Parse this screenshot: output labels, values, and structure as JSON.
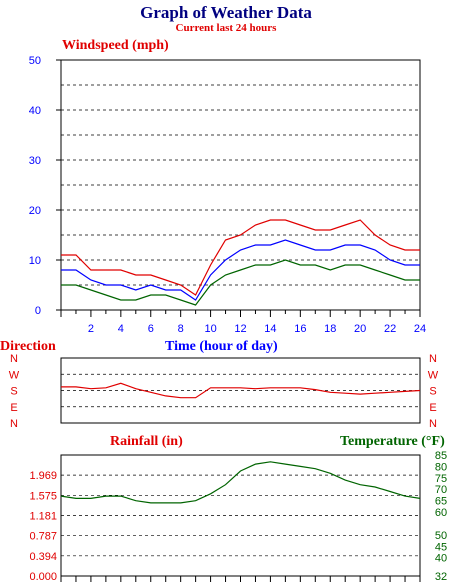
{
  "title": "Graph of Weather Data",
  "subtitle": "Current last 24 hours",
  "colors": {
    "title": "#000080",
    "red": "#e00000",
    "blue": "#0000ff",
    "green": "#006400"
  },
  "chart_data": [
    {
      "type": "line",
      "panel": "windspeed",
      "ylabel": "Windspeed (mph)",
      "xlabel": "Time (hour of day)",
      "xlim": [
        0,
        24
      ],
      "ylim": [
        0,
        50
      ],
      "y_ticks": [
        "0",
        "10",
        "20",
        "30",
        "40",
        "50"
      ],
      "x_ticks": [
        "2",
        "4",
        "6",
        "8",
        "10",
        "12",
        "14",
        "16",
        "18",
        "20",
        "22",
        "24"
      ],
      "grid": true,
      "series": [
        {
          "color": "#e00000",
          "x": [
            0,
            1,
            2,
            3,
            4,
            5,
            6,
            7,
            8,
            9,
            10,
            11,
            12,
            13,
            14,
            15,
            16,
            17,
            18,
            19,
            20,
            21,
            22,
            23,
            24
          ],
          "values": [
            11,
            11,
            8,
            8,
            8,
            7,
            7,
            6,
            5,
            3,
            9,
            14,
            15,
            17,
            18,
            18,
            17,
            16,
            16,
            17,
            18,
            15,
            13,
            12,
            12
          ]
        },
        {
          "color": "#0000ff",
          "x": [
            0,
            1,
            2,
            3,
            4,
            5,
            6,
            7,
            8,
            9,
            10,
            11,
            12,
            13,
            14,
            15,
            16,
            17,
            18,
            19,
            20,
            21,
            22,
            23,
            24
          ],
          "values": [
            8,
            8,
            6,
            5,
            5,
            4,
            5,
            4,
            4,
            2,
            7,
            10,
            12,
            13,
            13,
            14,
            13,
            12,
            12,
            13,
            13,
            12,
            10,
            9,
            9
          ]
        },
        {
          "color": "#006400",
          "x": [
            0,
            1,
            2,
            3,
            4,
            5,
            6,
            7,
            8,
            9,
            10,
            11,
            12,
            13,
            14,
            15,
            16,
            17,
            18,
            19,
            20,
            21,
            22,
            23,
            24
          ],
          "values": [
            5,
            5,
            4,
            3,
            2,
            2,
            3,
            3,
            2,
            1,
            5,
            7,
            8,
            9,
            9,
            10,
            9,
            9,
            8,
            9,
            9,
            8,
            7,
            6,
            6
          ]
        }
      ]
    },
    {
      "type": "line",
      "panel": "direction",
      "ylabel": "Direction",
      "xlim": [
        0,
        24
      ],
      "categories_y": [
        "N",
        "E",
        "S",
        "W",
        "N"
      ],
      "y_ticks": [
        "N",
        "E",
        "S",
        "W",
        "N"
      ],
      "grid": true,
      "series": [
        {
          "color": "#e00000",
          "x": [
            0,
            1,
            2,
            3,
            4,
            5,
            6,
            7,
            8,
            9,
            10,
            11,
            12,
            13,
            14,
            15,
            16,
            17,
            18,
            19,
            20,
            21,
            22,
            23,
            24
          ],
          "values": [
            200,
            200,
            190,
            195,
            220,
            190,
            170,
            150,
            140,
            140,
            195,
            195,
            195,
            190,
            195,
            195,
            195,
            185,
            170,
            165,
            160,
            165,
            170,
            175,
            180
          ]
        }
      ]
    },
    {
      "type": "line",
      "panel": "rainfall-temperature",
      "ylabel": "Rainfall (in)",
      "y2label": "Temperature (°F)",
      "xlim": [
        0,
        24
      ],
      "ylim": [
        0,
        2.362
      ],
      "y_ticks": [
        "0.000",
        "0.394",
        "0.787",
        "1.181",
        "1.575",
        "1.969"
      ],
      "y2lim": [
        32,
        85
      ],
      "y2_ticks": [
        "32",
        "40",
        "45",
        "50",
        "60",
        "65",
        "70",
        "75",
        "80",
        "85"
      ],
      "grid": true,
      "series": [
        {
          "color": "#006400",
          "x": [
            0,
            1,
            2,
            3,
            4,
            5,
            6,
            7,
            8,
            9,
            10,
            11,
            12,
            13,
            14,
            15,
            16,
            17,
            18,
            19,
            20,
            21,
            22,
            23,
            24
          ],
          "values": [
            67,
            66,
            66,
            67,
            67,
            65,
            64,
            64,
            64,
            65,
            68,
            72,
            78,
            81,
            82,
            81,
            80,
            79,
            77,
            74,
            72,
            71,
            69,
            67,
            66
          ]
        }
      ]
    }
  ]
}
